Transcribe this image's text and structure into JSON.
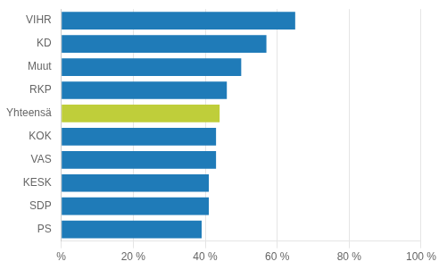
{
  "chart_data": {
    "type": "bar",
    "orientation": "horizontal",
    "categories": [
      "VIHR",
      "KD",
      "Muut",
      "RKP",
      "Yhteensä",
      "KOK",
      "VAS",
      "KESK",
      "SDP",
      "PS"
    ],
    "values": [
      65,
      57,
      50,
      46,
      44,
      43,
      43,
      41,
      41,
      39
    ],
    "colors": [
      "#1F7BB8",
      "#1F7BB8",
      "#1F7BB8",
      "#1F7BB8",
      "#BFCE3A",
      "#1F7BB8",
      "#1F7BB8",
      "#1F7BB8",
      "#1F7BB8",
      "#1F7BB8"
    ],
    "xlim": [
      0,
      100
    ],
    "xticks": [
      {
        "value": 0,
        "label": "%"
      },
      {
        "value": 20,
        "label": "20 %"
      },
      {
        "value": 40,
        "label": "40 %"
      },
      {
        "value": 60,
        "label": "60 %"
      },
      {
        "value": 80,
        "label": "80 %"
      },
      {
        "value": 100,
        "label": "100 %"
      }
    ],
    "grid": true
  }
}
